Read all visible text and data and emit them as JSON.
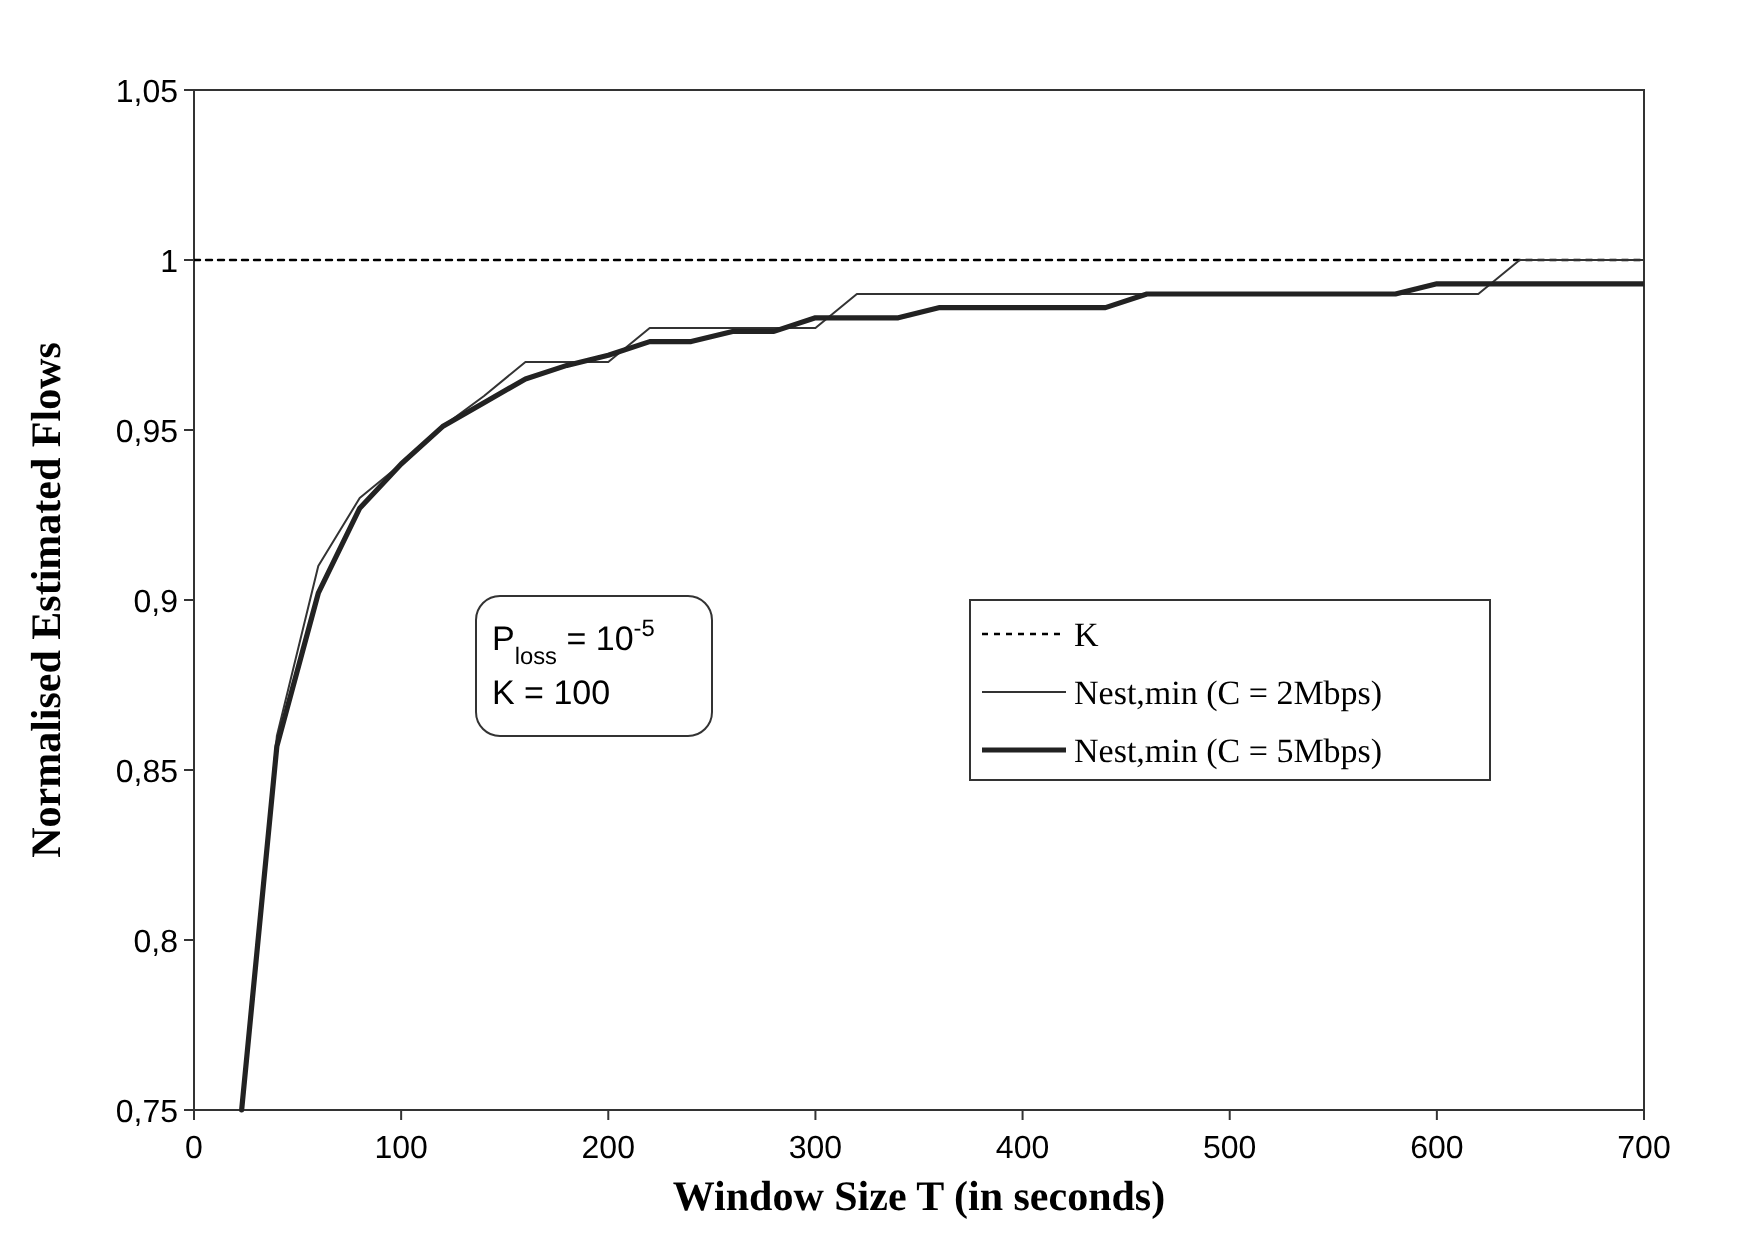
{
  "chart_data": {
    "type": "line",
    "xlabel": "Window Size T (in seconds)",
    "ylabel": "Normalised Estimated Flows",
    "xlim": [
      0,
      700
    ],
    "xticks": [
      0,
      100,
      200,
      300,
      400,
      500,
      600,
      700
    ],
    "ylim": [
      0.75,
      1.05
    ],
    "yticks": [
      {
        "value": 0.75,
        "label": "0,75"
      },
      {
        "value": 0.8,
        "label": "0,8"
      },
      {
        "value": 0.85,
        "label": "0,85"
      },
      {
        "value": 0.9,
        "label": "0,9"
      },
      {
        "value": 0.95,
        "label": "0,95"
      },
      1,
      {
        "value": 1.05,
        "label": "1,05"
      }
    ],
    "legend": "right",
    "grid": false,
    "marker": "none",
    "annotations": [
      "P$_{loss}$ = 10$^{-5}$\nK = 100"
    ],
    "series": [
      {
        "name": "K",
        "color": "#000000",
        "line_style": "dotted",
        "x": [
          0,
          700
        ],
        "values": [
          1,
          1
        ]
      },
      {
        "name": "Nest,min (C = 2Mbps)",
        "color": "#333333",
        "line_style": "solid",
        "x": [
          23,
          40,
          60,
          80,
          100,
          120,
          140,
          160,
          180,
          200,
          220,
          240,
          260,
          280,
          300,
          320,
          340,
          360,
          380,
          400,
          420,
          440,
          460,
          480,
          500,
          520,
          540,
          560,
          580,
          600,
          620,
          640,
          660,
          680,
          700
        ],
        "values": [
          0.75,
          0.86,
          0.91,
          0.93,
          0.94,
          0.951,
          0.96,
          0.97,
          0.97,
          0.97,
          0.98,
          0.98,
          0.98,
          0.98,
          0.98,
          0.99,
          0.99,
          0.99,
          0.99,
          0.99,
          0.99,
          0.99,
          0.99,
          0.99,
          0.99,
          0.99,
          0.99,
          0.99,
          0.99,
          0.99,
          0.99,
          1,
          1,
          1,
          1
        ]
      },
      {
        "name": "Nest,min (C = 5Mbps)",
        "color": "#222222",
        "line_style": "solid",
        "x": [
          23,
          40,
          60,
          80,
          100,
          120,
          140,
          160,
          180,
          200,
          220,
          240,
          260,
          280,
          300,
          320,
          340,
          360,
          380,
          400,
          420,
          440,
          460,
          480,
          500,
          520,
          540,
          560,
          580,
          600,
          620,
          640,
          660,
          680,
          700
        ],
        "values": [
          0.75,
          0.857,
          0.902,
          0.927,
          0.94,
          0.951,
          0.958,
          0.965,
          0.969,
          0.972,
          0.976,
          0.976,
          0.979,
          0.979,
          0.983,
          0.983,
          0.983,
          0.986,
          0.986,
          0.986,
          0.986,
          0.986,
          0.99,
          0.99,
          0.99,
          0.99,
          0.99,
          0.99,
          0.99,
          0.993,
          0.993,
          0.993,
          0.993,
          0.993,
          0.993
        ]
      }
    ]
  }
}
